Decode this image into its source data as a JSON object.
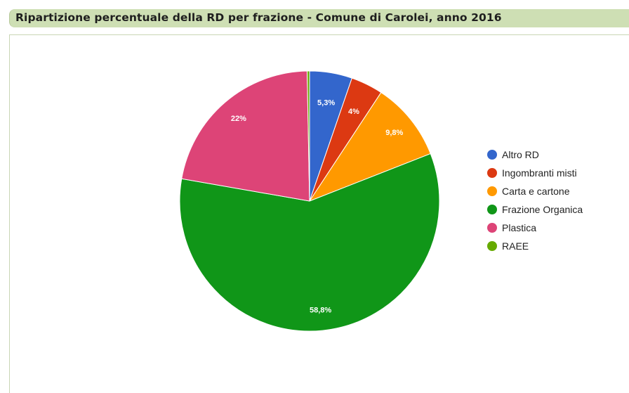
{
  "header": {
    "title": "Ripartizione percentuale della RD per frazione - Comune di Carolei, anno 2016"
  },
  "chart_data": {
    "type": "pie",
    "title": "Ripartizione percentuale della RD per frazione - Comune di Carolei, anno 2016",
    "legend_position": "right",
    "slices": [
      {
        "name": "Altro RD",
        "value": 5.3,
        "label": "5,3%",
        "color": "#3366cc"
      },
      {
        "name": "Ingombranti misti",
        "value": 4.0,
        "label": "4%",
        "color": "#dc3912"
      },
      {
        "name": "Carta e cartone",
        "value": 9.8,
        "label": "9,8%",
        "color": "#ff9900"
      },
      {
        "name": "Frazione Organica",
        "value": 58.8,
        "label": "58,8%",
        "color": "#109618"
      },
      {
        "name": "Plastica",
        "value": 22.0,
        "label": "22%",
        "color": "#dd4477"
      },
      {
        "name": "RAEE",
        "value": 0.3,
        "label": "",
        "color": "#66aa00"
      }
    ]
  }
}
